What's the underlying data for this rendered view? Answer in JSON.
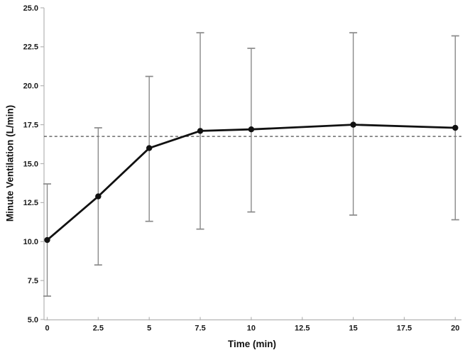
{
  "chart_data": {
    "type": "line",
    "title": "",
    "xlabel": "Time (min)",
    "ylabel": "Minute Ventilation (L/min)",
    "x": [
      0,
      2.5,
      5,
      7.5,
      10,
      15,
      20
    ],
    "series": [
      {
        "name": "Minute Ventilation",
        "values": [
          10.1,
          12.9,
          16.0,
          17.1,
          17.2,
          17.5,
          17.3
        ],
        "error_upper": [
          13.7,
          17.3,
          20.6,
          23.4,
          22.4,
          23.4,
          23.2
        ],
        "error_lower": [
          6.5,
          8.5,
          11.3,
          10.8,
          11.9,
          11.7,
          11.4
        ]
      }
    ],
    "reference_line": {
      "value": 16.75,
      "style": "dashed"
    },
    "xlim": [
      0,
      20
    ],
    "ylim": [
      5.0,
      25.0
    ],
    "x_ticks": [
      0,
      2.5,
      5,
      7.5,
      10,
      12.5,
      15,
      17.5,
      20
    ],
    "x_tick_labels": [
      "0",
      "2.5",
      "5",
      "7.5",
      "10",
      "12.5",
      "15",
      "17.5",
      "20"
    ],
    "y_ticks": [
      5.0,
      7.5,
      10.0,
      12.5,
      15.0,
      17.5,
      20.0,
      22.5,
      25.0
    ],
    "y_tick_labels": [
      "5.0",
      "7.5",
      "10.0",
      "12.5",
      "15.0",
      "17.5",
      "20.0",
      "22.5",
      "25.0"
    ],
    "grid": false,
    "legend": false,
    "marker": "circle",
    "colors": {
      "series_line": "#111111",
      "marker": "#111111",
      "error_bar": "#8a8a8a",
      "reference_line": "#4d4d4d",
      "axis": "#b3b3b3",
      "tick_label": "#1a1a1a",
      "background": "#ffffff"
    }
  }
}
